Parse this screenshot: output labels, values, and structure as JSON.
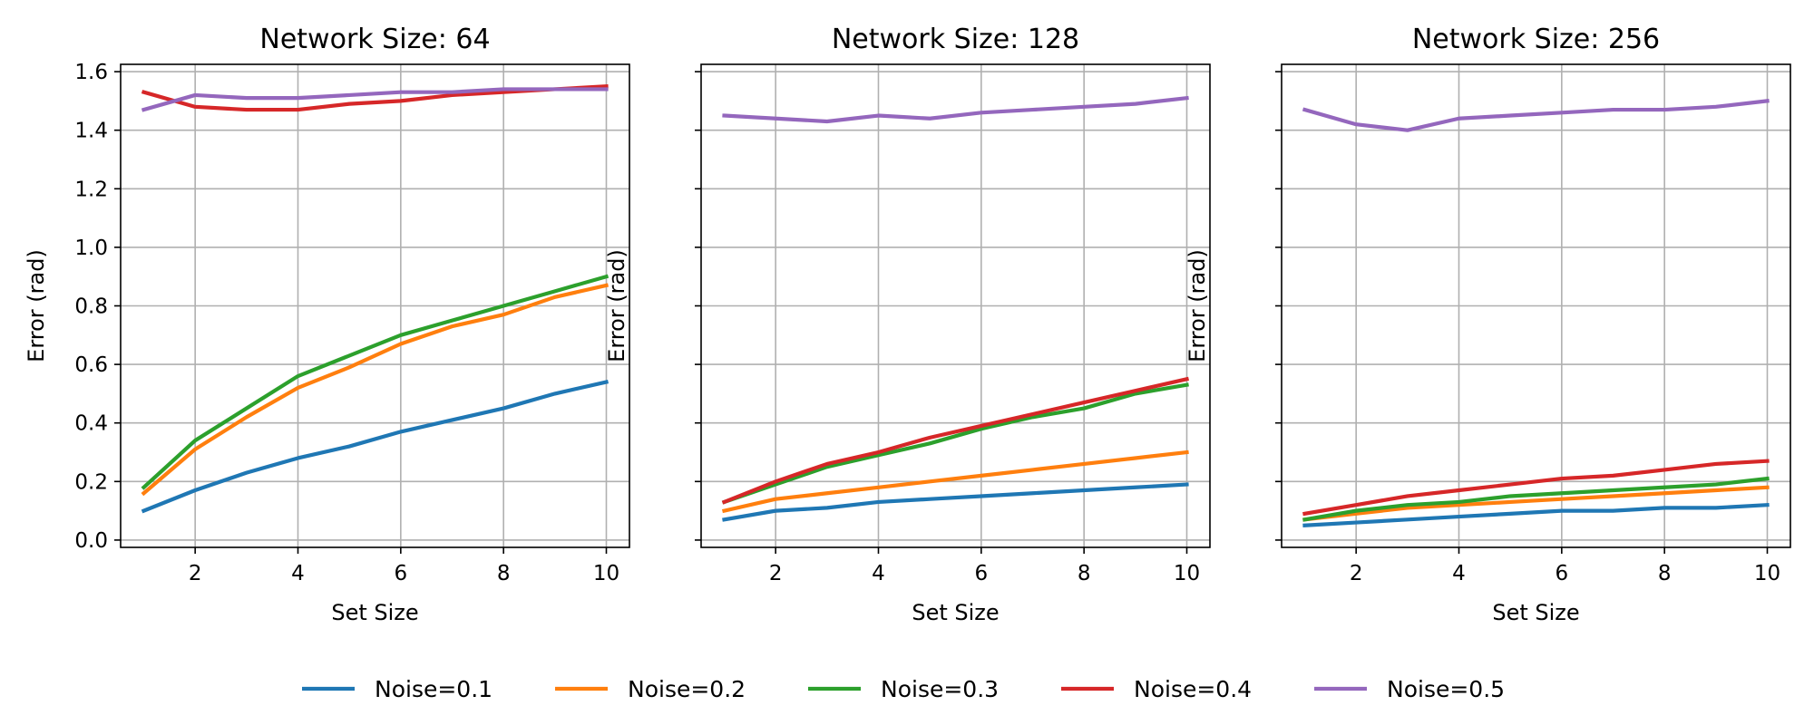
{
  "legend": {
    "placement": "bottom-center",
    "items": [
      {
        "label": "Noise=0.1",
        "color": "#1f77b4"
      },
      {
        "label": "Noise=0.2",
        "color": "#ff7f0e"
      },
      {
        "label": "Noise=0.3",
        "color": "#2ca02c"
      },
      {
        "label": "Noise=0.4",
        "color": "#d62728"
      },
      {
        "label": "Noise=0.5",
        "color": "#9467bd"
      }
    ]
  },
  "chart_data": [
    {
      "type": "line",
      "title": "Network Size: 64",
      "xlabel": "Set Size",
      "ylabel": "Error (rad)",
      "xlim": [
        0.55,
        10.45
      ],
      "ylim": [
        -0.025,
        1.625
      ],
      "xticks": [
        "2",
        "4",
        "6",
        "8",
        "10"
      ],
      "yticks": [
        "0.0",
        "0.2",
        "0.4",
        "0.6",
        "0.8",
        "1.0",
        "1.2",
        "1.4",
        "1.6"
      ],
      "show_yticklabels": true,
      "grid": true,
      "x": [
        1,
        2,
        3,
        4,
        5,
        6,
        7,
        8,
        9,
        10
      ],
      "series": [
        {
          "name": "Noise=0.1",
          "values": [
            0.1,
            0.17,
            0.23,
            0.28,
            0.32,
            0.37,
            0.41,
            0.45,
            0.5,
            0.54
          ]
        },
        {
          "name": "Noise=0.2",
          "values": [
            0.16,
            0.31,
            0.42,
            0.52,
            0.59,
            0.67,
            0.73,
            0.77,
            0.83,
            0.87
          ]
        },
        {
          "name": "Noise=0.3",
          "values": [
            0.18,
            0.34,
            0.45,
            0.56,
            0.63,
            0.7,
            0.75,
            0.8,
            0.85,
            0.9
          ]
        },
        {
          "name": "Noise=0.4",
          "values": [
            1.53,
            1.48,
            1.47,
            1.47,
            1.49,
            1.5,
            1.52,
            1.53,
            1.54,
            1.55
          ]
        },
        {
          "name": "Noise=0.5",
          "values": [
            1.47,
            1.52,
            1.51,
            1.51,
            1.52,
            1.53,
            1.53,
            1.54,
            1.54,
            1.54
          ]
        }
      ]
    },
    {
      "type": "line",
      "title": "Network Size: 128",
      "xlabel": "Set Size",
      "ylabel": "Error (rad)",
      "xlim": [
        0.55,
        10.45
      ],
      "ylim": [
        -0.025,
        1.625
      ],
      "xticks": [
        "2",
        "4",
        "6",
        "8",
        "10"
      ],
      "yticks": [
        "0.0",
        "0.2",
        "0.4",
        "0.6",
        "0.8",
        "1.0",
        "1.2",
        "1.4",
        "1.6"
      ],
      "show_yticklabels": false,
      "grid": true,
      "x": [
        1,
        2,
        3,
        4,
        5,
        6,
        7,
        8,
        9,
        10
      ],
      "series": [
        {
          "name": "Noise=0.1",
          "values": [
            0.07,
            0.1,
            0.11,
            0.13,
            0.14,
            0.15,
            0.16,
            0.17,
            0.18,
            0.19
          ]
        },
        {
          "name": "Noise=0.2",
          "values": [
            0.1,
            0.14,
            0.16,
            0.18,
            0.2,
            0.22,
            0.24,
            0.26,
            0.28,
            0.3
          ]
        },
        {
          "name": "Noise=0.3",
          "values": [
            0.13,
            0.19,
            0.25,
            0.29,
            0.33,
            0.38,
            0.42,
            0.45,
            0.5,
            0.53
          ]
        },
        {
          "name": "Noise=0.4",
          "values": [
            0.13,
            0.2,
            0.26,
            0.3,
            0.35,
            0.39,
            0.43,
            0.47,
            0.51,
            0.55
          ]
        },
        {
          "name": "Noise=0.5",
          "values": [
            1.45,
            1.44,
            1.43,
            1.45,
            1.44,
            1.46,
            1.47,
            1.48,
            1.49,
            1.51
          ]
        }
      ]
    },
    {
      "type": "line",
      "title": "Network Size: 256",
      "xlabel": "Set Size",
      "ylabel": "Error (rad)",
      "xlim": [
        0.55,
        10.45
      ],
      "ylim": [
        -0.025,
        1.625
      ],
      "xticks": [
        "2",
        "4",
        "6",
        "8",
        "10"
      ],
      "yticks": [
        "0.0",
        "0.2",
        "0.4",
        "0.6",
        "0.8",
        "1.0",
        "1.2",
        "1.4",
        "1.6"
      ],
      "show_yticklabels": false,
      "grid": true,
      "x": [
        1,
        2,
        3,
        4,
        5,
        6,
        7,
        8,
        9,
        10
      ],
      "series": [
        {
          "name": "Noise=0.1",
          "values": [
            0.05,
            0.06,
            0.07,
            0.08,
            0.09,
            0.1,
            0.1,
            0.11,
            0.11,
            0.12
          ]
        },
        {
          "name": "Noise=0.2",
          "values": [
            0.07,
            0.09,
            0.11,
            0.12,
            0.13,
            0.14,
            0.15,
            0.16,
            0.17,
            0.18
          ]
        },
        {
          "name": "Noise=0.3",
          "values": [
            0.07,
            0.1,
            0.12,
            0.13,
            0.15,
            0.16,
            0.17,
            0.18,
            0.19,
            0.21
          ]
        },
        {
          "name": "Noise=0.4",
          "values": [
            0.09,
            0.12,
            0.15,
            0.17,
            0.19,
            0.21,
            0.22,
            0.24,
            0.26,
            0.27
          ]
        },
        {
          "name": "Noise=0.5",
          "values": [
            1.47,
            1.42,
            1.4,
            1.44,
            1.45,
            1.46,
            1.47,
            1.47,
            1.48,
            1.5
          ]
        }
      ]
    }
  ]
}
